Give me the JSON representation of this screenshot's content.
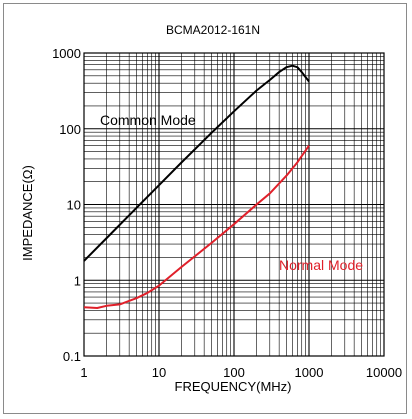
{
  "chart_data": {
    "type": "line",
    "title": "BCMA2012-161N",
    "xlabel": "FREQUENCY(MHz)",
    "ylabel": "IMPEDANCE(Ω)",
    "x_scale": "log",
    "y_scale": "log",
    "xlim": [
      1,
      10000
    ],
    "ylim": [
      0.1,
      1000
    ],
    "x_ticks": [
      "1",
      "10",
      "100",
      "1000",
      "10000"
    ],
    "y_ticks": [
      "1000",
      "100",
      "10",
      "1",
      "0.1"
    ],
    "grid": true,
    "annotations": [
      {
        "text": "Common Mode",
        "color": "#000000"
      },
      {
        "text": "Normal Mode",
        "color": "#e0202a"
      }
    ],
    "series": [
      {
        "name": "Common Mode",
        "color": "#000000",
        "points": [
          [
            1,
            1.8
          ],
          [
            2,
            3.6
          ],
          [
            5,
            9
          ],
          [
            10,
            18
          ],
          [
            20,
            36
          ],
          [
            50,
            88
          ],
          [
            100,
            170
          ],
          [
            200,
            320
          ],
          [
            300,
            440
          ],
          [
            400,
            560
          ],
          [
            500,
            650
          ],
          [
            600,
            680
          ],
          [
            700,
            650
          ],
          [
            800,
            560
          ],
          [
            900,
            480
          ],
          [
            1000,
            420
          ]
        ]
      },
      {
        "name": "Normal Mode",
        "color": "#e0202a",
        "points": [
          [
            1,
            0.44
          ],
          [
            1.5,
            0.43
          ],
          [
            2,
            0.46
          ],
          [
            3,
            0.48
          ],
          [
            5,
            0.58
          ],
          [
            7,
            0.68
          ],
          [
            10,
            0.85
          ],
          [
            20,
            1.5
          ],
          [
            50,
            3.1
          ],
          [
            100,
            5.5
          ],
          [
            200,
            10
          ],
          [
            300,
            14
          ],
          [
            500,
            24
          ],
          [
            700,
            36
          ],
          [
            1000,
            60
          ]
        ]
      }
    ]
  }
}
